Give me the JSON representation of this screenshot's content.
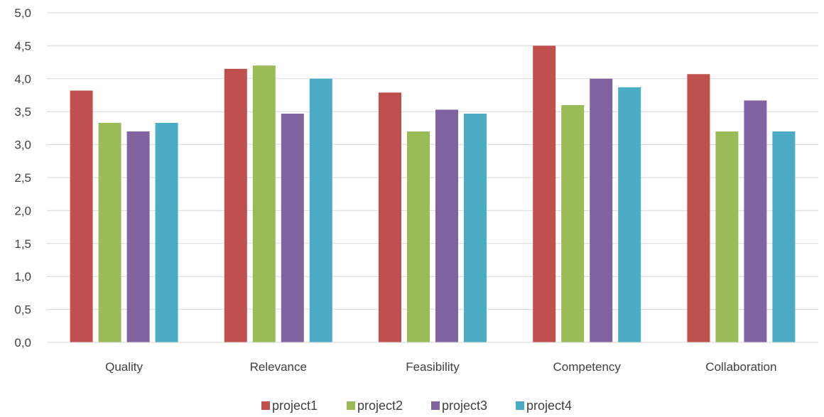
{
  "chart_data": {
    "type": "bar",
    "categories": [
      "Quality",
      "Relevance",
      "Feasibility",
      "Competency",
      "Collaboration"
    ],
    "series": [
      {
        "name": "project1",
        "color": "#c0504d",
        "values": [
          3.82,
          4.15,
          3.79,
          4.5,
          4.07
        ]
      },
      {
        "name": "project2",
        "color": "#9bbb59",
        "values": [
          3.33,
          4.2,
          3.2,
          3.6,
          3.2
        ]
      },
      {
        "name": "project3",
        "color": "#8064a2",
        "values": [
          3.2,
          3.47,
          3.53,
          4.0,
          3.67
        ]
      },
      {
        "name": "project4",
        "color": "#4bacc6",
        "values": [
          3.33,
          4.0,
          3.47,
          3.87,
          3.2
        ]
      }
    ],
    "ylim": [
      0,
      5
    ],
    "yticks": [
      "0,0",
      "0,5",
      "1,0",
      "1,5",
      "2,0",
      "2,5",
      "3,0",
      "3,5",
      "4,0",
      "4,5",
      "5,0"
    ],
    "ytick_values": [
      0,
      0.5,
      1,
      1.5,
      2,
      2.5,
      3,
      3.5,
      4,
      4.5,
      5
    ],
    "grid": true,
    "legend_position": "bottom"
  }
}
